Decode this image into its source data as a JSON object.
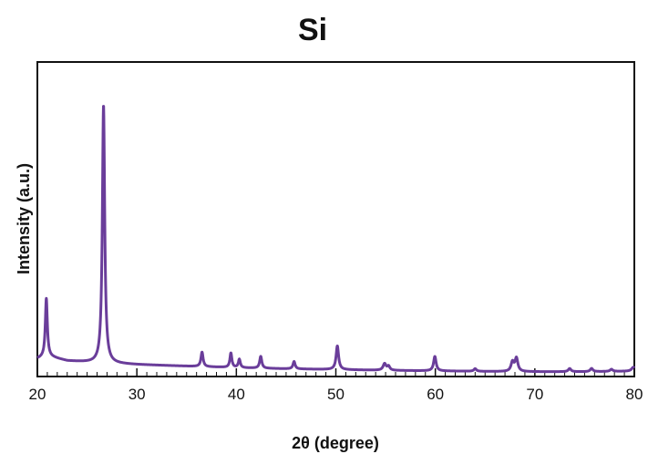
{
  "chart_data": {
    "type": "line",
    "title": "Si",
    "xlabel": "2θ (degree)",
    "ylabel": "Intensity (a.u.)",
    "xlim": [
      20,
      80
    ],
    "ylim": [
      0,
      100
    ],
    "grid": false,
    "legend": "none",
    "x_ticks": [
      20,
      30,
      40,
      50,
      60,
      70,
      80
    ],
    "x_tick_labels": [
      "20",
      "30",
      "40",
      "50",
      "60",
      "70",
      "80"
    ],
    "y_ticks_shown": false,
    "series": [
      {
        "color": "#6a3d9a",
        "background": [
          [
            20,
            5
          ],
          [
            21,
            6
          ],
          [
            23,
            4.2
          ],
          [
            26,
            3.4
          ],
          [
            30,
            2.8
          ],
          [
            35,
            2.2
          ],
          [
            40,
            1.6
          ],
          [
            45,
            1.2
          ],
          [
            50,
            0.9
          ],
          [
            55,
            0.6
          ],
          [
            60,
            0.4
          ],
          [
            65,
            0.2
          ],
          [
            70,
            0.1
          ],
          [
            75,
            0.1
          ],
          [
            80,
            0.3
          ]
        ],
        "peaks": [
          {
            "x": 20.9,
            "height": 22,
            "width": 0.12
          },
          {
            "x": 26.65,
            "height": 98,
            "width": 0.14
          },
          {
            "x": 36.55,
            "height": 5.5,
            "width": 0.13
          },
          {
            "x": 39.45,
            "height": 5.5,
            "width": 0.12
          },
          {
            "x": 40.3,
            "height": 3.2,
            "width": 0.12
          },
          {
            "x": 42.45,
            "height": 4.5,
            "width": 0.13
          },
          {
            "x": 45.8,
            "height": 2.8,
            "width": 0.13
          },
          {
            "x": 50.15,
            "height": 9,
            "width": 0.15
          },
          {
            "x": 54.9,
            "height": 2.5,
            "width": 0.18
          },
          {
            "x": 55.3,
            "height": 1.5,
            "width": 0.15
          },
          {
            "x": 59.95,
            "height": 5.5,
            "width": 0.15
          },
          {
            "x": 64.0,
            "height": 1.0,
            "width": 0.15
          },
          {
            "x": 67.75,
            "height": 3.5,
            "width": 0.17
          },
          {
            "x": 68.15,
            "height": 5.0,
            "width": 0.17
          },
          {
            "x": 73.5,
            "height": 1.2,
            "width": 0.16
          },
          {
            "x": 75.7,
            "height": 1.2,
            "width": 0.16
          },
          {
            "x": 77.7,
            "height": 0.8,
            "width": 0.16
          },
          {
            "x": 79.9,
            "height": 1.5,
            "width": 0.2
          }
        ]
      }
    ]
  },
  "colors": {
    "frame": "#111111",
    "series": "#6a3d9a",
    "text": "#111111"
  }
}
